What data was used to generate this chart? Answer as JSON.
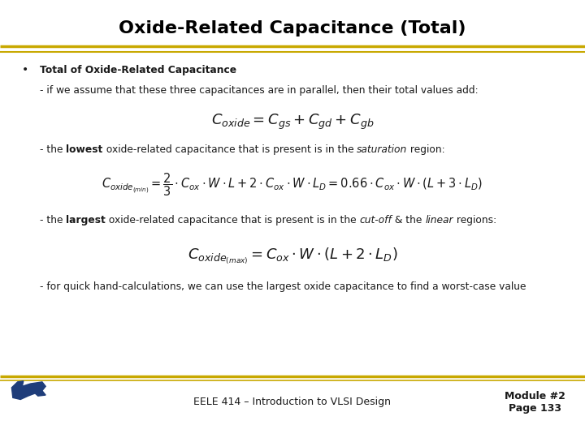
{
  "title": "Oxide-Related Capacitance (Total)",
  "title_fontsize": 16,
  "title_color": "#000000",
  "bg_color": "#ffffff",
  "gold_color": "#C8A800",
  "bullet_bold": "Total of Oxide-Related Capacitance",
  "line1": "- if we assume that these three capacitances are in parallel, then their total values add:",
  "eq1": "$C_{oxide} = C_{gs} + C_{gd} + C_{gb}$",
  "eq2": "$C_{oxide_{(min)}} = \\dfrac{2}{3} \\cdot C_{ox} \\cdot W \\cdot L + 2 \\cdot C_{ox} \\cdot W \\cdot L_D = 0.66 \\cdot C_{ox} \\cdot W \\cdot \\left(L + 3 \\cdot L_D\\right)$",
  "eq3": "$C_{oxide_{(max)}} = C_{ox} \\cdot W \\cdot \\left(L + 2 \\cdot L_D\\right)$",
  "line4": "- for quick hand-calculations, we can use the largest oxide capacitance to find a worst-case value",
  "footer_center": "EELE 414 – Introduction to VLSI Design",
  "footer_right1": "Module #2",
  "footer_right2": "Page 133",
  "footer_fontsize": 9,
  "text_color": "#1a1a1a",
  "navy_color": "#1f3d7a",
  "gold_color2": "#C8A800"
}
